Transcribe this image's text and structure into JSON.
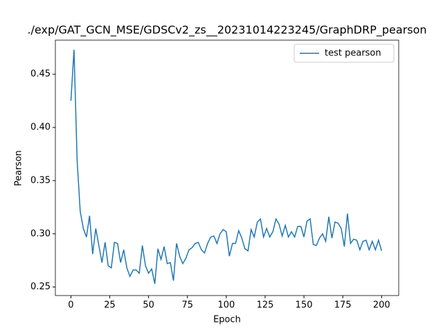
{
  "chart_data": {
    "type": "line",
    "title": "./exp/GAT_GCN_MSE/GDSCv2_zs__20231014223245/GraphDRP_pearson",
    "x_label": "Epoch",
    "y_label": "Pearson",
    "x": [
      0,
      2,
      4,
      6,
      8,
      10,
      12,
      14,
      16,
      18,
      20,
      22,
      24,
      26,
      28,
      30,
      32,
      34,
      36,
      38,
      40,
      42,
      44,
      46,
      48,
      50,
      52,
      54,
      56,
      58,
      60,
      62,
      64,
      66,
      68,
      70,
      72,
      74,
      76,
      78,
      80,
      82,
      84,
      86,
      88,
      90,
      92,
      94,
      96,
      98,
      100,
      102,
      104,
      106,
      108,
      110,
      112,
      114,
      116,
      118,
      120,
      122,
      124,
      126,
      128,
      130,
      132,
      134,
      136,
      138,
      140,
      142,
      144,
      146,
      148,
      150,
      152,
      154,
      156,
      158,
      160,
      162,
      164,
      166,
      168,
      170,
      172,
      174,
      176,
      178,
      180,
      182,
      184,
      186,
      188,
      190,
      192,
      194,
      196,
      198,
      200
    ],
    "series": [
      {
        "name": "test pearson",
        "color": "#1f77b4",
        "values": [
          0.425,
          0.473,
          0.369,
          0.321,
          0.305,
          0.297,
          0.317,
          0.281,
          0.305,
          0.289,
          0.273,
          0.292,
          0.27,
          0.268,
          0.292,
          0.291,
          0.273,
          0.285,
          0.268,
          0.26,
          0.266,
          0.266,
          0.263,
          0.289,
          0.27,
          0.263,
          0.267,
          0.253,
          0.286,
          0.276,
          0.288,
          0.272,
          0.273,
          0.256,
          0.291,
          0.279,
          0.272,
          0.277,
          0.285,
          0.287,
          0.291,
          0.292,
          0.285,
          0.282,
          0.291,
          0.297,
          0.298,
          0.291,
          0.3,
          0.304,
          0.302,
          0.279,
          0.291,
          0.291,
          0.303,
          0.296,
          0.286,
          0.284,
          0.304,
          0.297,
          0.311,
          0.314,
          0.297,
          0.305,
          0.297,
          0.302,
          0.314,
          0.309,
          0.298,
          0.308,
          0.297,
          0.302,
          0.297,
          0.307,
          0.307,
          0.297,
          0.312,
          0.314,
          0.29,
          0.289,
          0.296,
          0.3,
          0.293,
          0.316,
          0.296,
          0.311,
          0.31,
          0.305,
          0.288,
          0.319,
          0.291,
          0.295,
          0.294,
          0.285,
          0.293,
          0.294,
          0.285,
          0.293,
          0.285,
          0.294,
          0.284
        ]
      }
    ],
    "xlim": [
      -10,
      211
    ],
    "ylim": [
      0.242,
      0.482
    ],
    "xticks": [
      0,
      25,
      50,
      75,
      100,
      125,
      150,
      175,
      200
    ],
    "yticks": [
      0.25,
      {
        "value": 0.3,
        "label": "0.30"
      },
      0.35,
      {
        "value": 0.4,
        "label": "0.40"
      },
      0.45
    ],
    "legend": "upper right"
  }
}
